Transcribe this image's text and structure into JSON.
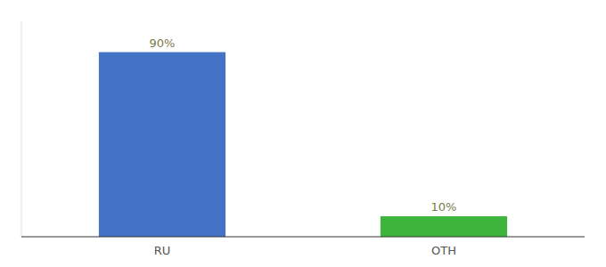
{
  "chart_data": {
    "type": "bar",
    "categories": [
      "RU",
      "OTH"
    ],
    "values": [
      90,
      10
    ],
    "value_labels": [
      "90%",
      "10%"
    ],
    "colors": [
      "#4472c4",
      "#3db53d"
    ],
    "ylim": [
      0,
      105
    ],
    "data_labels": true,
    "tick_labels": "x"
  }
}
